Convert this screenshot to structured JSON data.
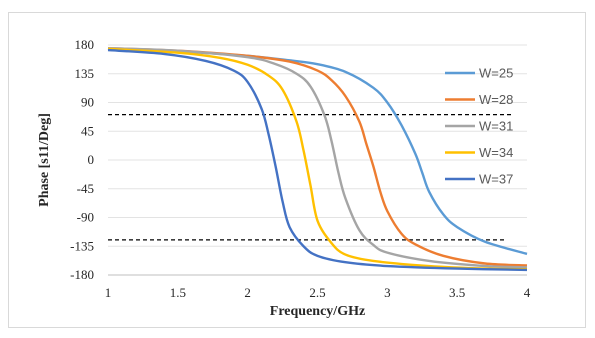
{
  "chart_data": {
    "type": "line",
    "xlabel": "Frequency/GHz",
    "ylabel": "Phase [s11/Deg]",
    "xlim": [
      1,
      4
    ],
    "ylim": [
      -180,
      180
    ],
    "xticks": [
      "1",
      "1.5",
      "2",
      "2.5",
      "3",
      "3.5",
      "4"
    ],
    "yticks": [
      "180",
      "135",
      "90",
      "45",
      "0",
      "-45",
      "-90",
      "-135",
      "-180"
    ],
    "grid": "horizontal",
    "legend_position": "right",
    "reference_lines": [
      {
        "orientation": "horizontal",
        "y": 71,
        "x_range": [
          1,
          3.9
        ],
        "style": "dashed"
      },
      {
        "orientation": "horizontal",
        "y": -125,
        "x_range": [
          1,
          3.85
        ],
        "style": "dashed"
      }
    ],
    "series": [
      {
        "name": "W=25",
        "color": "#5b9bd5",
        "x": [
          1,
          1.5,
          2,
          2.3,
          2.5,
          2.7,
          2.9,
          3.0,
          3.1,
          3.2,
          3.25,
          3.3,
          3.4,
          3.5,
          3.7,
          4
        ],
        "y": [
          174,
          170,
          163,
          156,
          150,
          138,
          113,
          90,
          55,
          10,
          -20,
          -50,
          -85,
          -105,
          -128,
          -147
        ]
      },
      {
        "name": "W=28",
        "color": "#ed7d31",
        "x": [
          1,
          1.5,
          2,
          2.3,
          2.5,
          2.6,
          2.7,
          2.8,
          2.85,
          2.9,
          2.95,
          3.0,
          3.1,
          3.2,
          3.4,
          3.7,
          4
        ],
        "y": [
          175,
          171,
          163,
          154,
          140,
          125,
          100,
          60,
          25,
          -10,
          -50,
          -80,
          -115,
          -132,
          -150,
          -162,
          -165
        ]
      },
      {
        "name": "W=31",
        "color": "#a5a5a5",
        "x": [
          1,
          1.5,
          2,
          2.2,
          2.35,
          2.45,
          2.55,
          2.6,
          2.65,
          2.7,
          2.8,
          2.9,
          3.0,
          3.3,
          3.7,
          4
        ],
        "y": [
          175,
          171,
          161,
          150,
          135,
          115,
          70,
          30,
          -20,
          -60,
          -110,
          -133,
          -145,
          -158,
          -166,
          -168
        ]
      },
      {
        "name": "W=34",
        "color": "#ffc000",
        "x": [
          1,
          1.5,
          1.8,
          2.0,
          2.15,
          2.25,
          2.35,
          2.4,
          2.45,
          2.5,
          2.6,
          2.7,
          2.9,
          3.3,
          3.7,
          4
        ],
        "y": [
          174,
          168,
          160,
          149,
          132,
          110,
          60,
          15,
          -40,
          -95,
          -130,
          -148,
          -158,
          -166,
          -170,
          -171
        ]
      },
      {
        "name": "W=37",
        "color": "#4472c4",
        "x": [
          1,
          1.4,
          1.7,
          1.9,
          2.0,
          2.1,
          2.15,
          2.2,
          2.25,
          2.3,
          2.4,
          2.5,
          2.7,
          3.0,
          3.5,
          4
        ],
        "y": [
          172,
          166,
          155,
          140,
          122,
          80,
          40,
          -10,
          -65,
          -105,
          -135,
          -150,
          -160,
          -166,
          -170,
          -172
        ]
      }
    ]
  }
}
